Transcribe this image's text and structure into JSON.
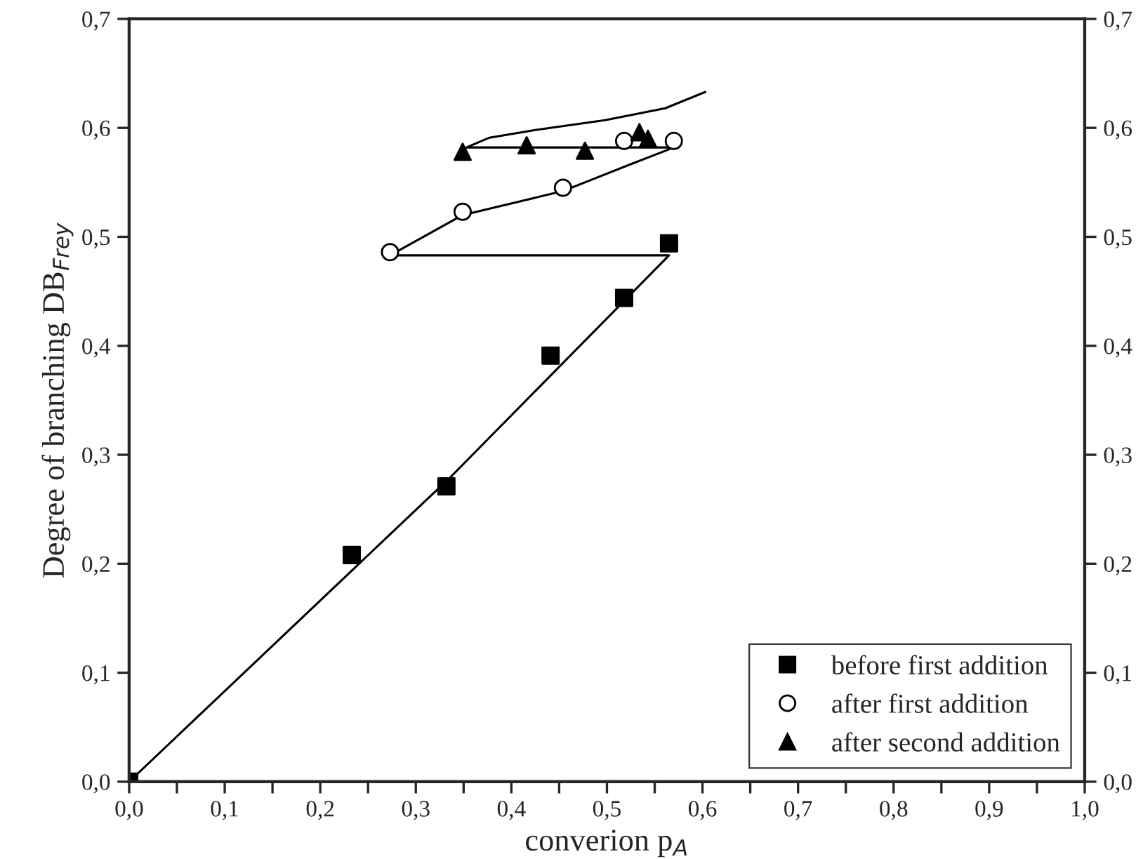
{
  "chart_data": {
    "type": "scatter",
    "xlabel": "converion p$_{A}$",
    "ylabel": "Degree of branching DB$_{Frey}$",
    "series": [
      {
        "type": "line",
        "color": "#000000",
        "marker": "none",
        "x": [
          0,
          0.338,
          0.565,
          0.273,
          0.349,
          0.454,
          0.523,
          0.57,
          0.353,
          0.377,
          0.425,
          0.498,
          0.561,
          0.603
        ],
        "values": [
          0,
          0.281,
          0.483,
          0.483,
          0.52,
          0.542,
          0.566,
          0.582,
          0.582,
          0.591,
          0.598,
          0.607,
          0.618,
          0.633
        ]
      },
      {
        "name": "before first addition",
        "color": "#000000",
        "marker": "square",
        "x": [
          0,
          0.233,
          0.332,
          0.441,
          0.518,
          0.565
        ],
        "values": [
          0,
          0.208,
          0.271,
          0.391,
          0.444,
          0.494
        ]
      },
      {
        "name": "after first addition",
        "color": "#000000",
        "marker": "circle",
        "x": [
          0.273,
          0.349,
          0.454,
          0.518,
          0.57
        ],
        "values": [
          0.486,
          0.523,
          0.545,
          0.588,
          0.588
        ]
      },
      {
        "name": "after second addition",
        "color": "#000000",
        "marker": "triangle",
        "x": [
          0.349,
          0.416,
          0.477,
          0.534,
          0.543
        ],
        "values": [
          0.578,
          0.584,
          0.579,
          0.596,
          0.59
        ]
      }
    ],
    "xlim": [
      0,
      1
    ],
    "ylim": [
      0,
      0.7
    ],
    "y2lim": [
      0,
      0.7
    ],
    "xticks": [
      {
        "value": 0,
        "label": "0,0"
      },
      {
        "value": 0.05,
        "label": null
      },
      {
        "value": 0.1,
        "label": "0,1"
      },
      {
        "value": 0.15,
        "label": null
      },
      {
        "value": 0.2,
        "label": "0,2"
      },
      {
        "value": 0.25,
        "label": null
      },
      {
        "value": 0.3,
        "label": "0,3"
      },
      {
        "value": 0.35,
        "label": null
      },
      {
        "value": 0.4,
        "label": "0,4"
      },
      {
        "value": 0.45,
        "label": null
      },
      {
        "value": 0.5,
        "label": "0,5"
      },
      {
        "value": 0.55,
        "label": null
      },
      {
        "value": 0.6,
        "label": "0,6"
      },
      {
        "value": 0.65,
        "label": null
      },
      {
        "value": 0.7,
        "label": "0,7"
      },
      {
        "value": 0.75,
        "label": null
      },
      {
        "value": 0.8,
        "label": "0,8"
      },
      {
        "value": 0.85,
        "label": null
      },
      {
        "value": 0.9,
        "label": "0,9"
      },
      {
        "value": 0.95,
        "label": null
      },
      {
        "value": 1.0,
        "label": "1,0"
      }
    ],
    "yticks": [
      {
        "value": 0,
        "label": "0,0"
      },
      {
        "value": 0.1,
        "label": "0,1"
      },
      {
        "value": 0.2,
        "label": "0,2"
      },
      {
        "value": 0.3,
        "label": "0,3"
      },
      {
        "value": 0.4,
        "label": "0,4"
      },
      {
        "value": 0.5,
        "label": "0,5"
      },
      {
        "value": 0.6,
        "label": "0,6"
      },
      {
        "value": 0.7,
        "label": "0,7"
      }
    ],
    "y2ticks": [
      {
        "value": 0,
        "label": "0,0"
      },
      {
        "value": 0.1,
        "label": "0,1"
      },
      {
        "value": 0.2,
        "label": "0,2"
      },
      {
        "value": 0.3,
        "label": "0,3"
      },
      {
        "value": 0.4,
        "label": "0,4"
      },
      {
        "value": 0.5,
        "label": "0,5"
      },
      {
        "value": 0.6,
        "label": "0,6"
      },
      {
        "value": 0.7,
        "label": "0,7"
      }
    ],
    "legend": "bottom right",
    "grid": false
  }
}
